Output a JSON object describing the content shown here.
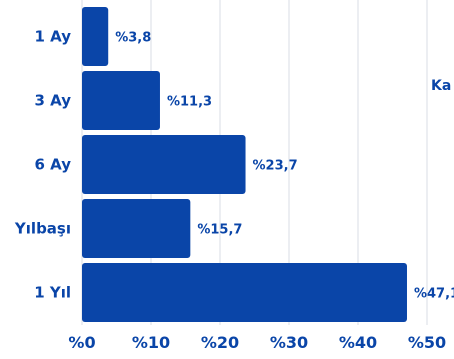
{
  "chart_data": {
    "type": "bar",
    "orientation": "horizontal",
    "categories": [
      "1 Ay",
      "3 Ay",
      "6 Ay",
      "Yılbaşı",
      "1 Yıl"
    ],
    "values": [
      3.8,
      11.3,
      23.7,
      15.7,
      47.1
    ],
    "value_labels": [
      "%3,8",
      "%11,3",
      "%23,7",
      "%15,7",
      "%47,1"
    ],
    "x_ticks": [
      0,
      10,
      20,
      30,
      40,
      50
    ],
    "x_tick_labels": [
      "%0",
      "%10",
      "%20",
      "%30",
      "%40",
      "%50"
    ],
    "xlim": [
      0,
      50
    ],
    "grid": "vertical",
    "legend_text": "Ka",
    "legend_placement": "right, partially cut off",
    "colors": {
      "bar": "#0a45a8",
      "text": "#0a45a8",
      "grid": "#d9dde6"
    }
  }
}
